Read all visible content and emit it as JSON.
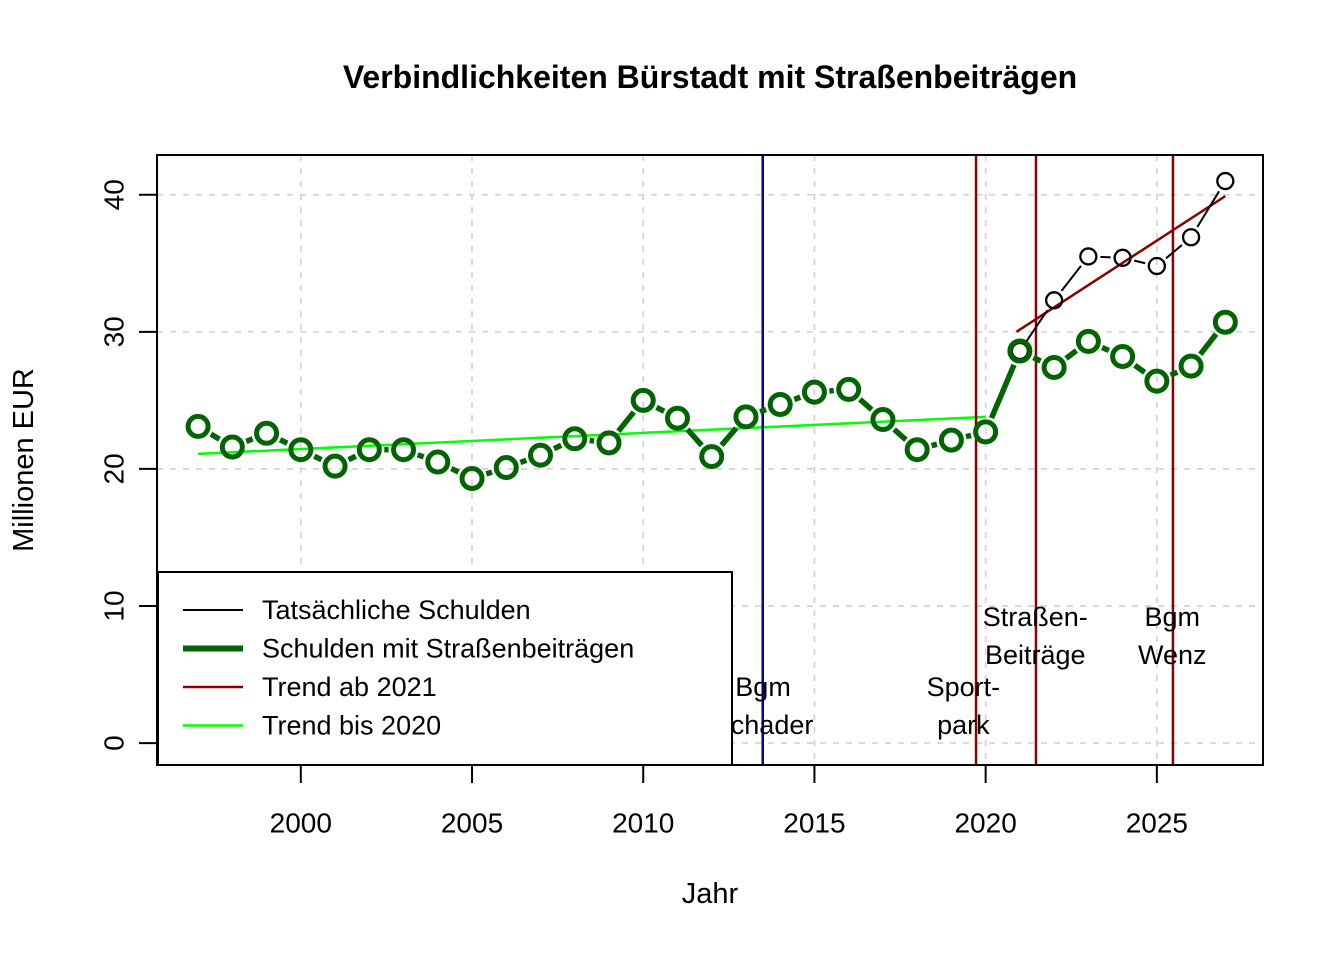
{
  "chart_data": {
    "type": "line",
    "title": "Verbindlichkeiten Bürstadt mit Straßenbeiträgen",
    "xlabel": "Jahr",
    "ylabel": "Millionen EUR",
    "xlim": [
      1995.8,
      2028.1
    ],
    "ylim": [
      -1.6,
      42.9
    ],
    "x_ticks": [
      "2000",
      "2005",
      "2010",
      "2015",
      "2020",
      "2025"
    ],
    "x_tick_values": [
      2000,
      2005,
      2010,
      2015,
      2020,
      2025
    ],
    "y_ticks": [
      "0",
      "10",
      "20",
      "30",
      "40"
    ],
    "y_tick_values": [
      0,
      10,
      20,
      30,
      40
    ],
    "grid": true,
    "grid_color": "#D3D3D3",
    "background": "#FFFFFF",
    "series": [
      {
        "name": "Tatsächliche Schulden",
        "color": "#000000",
        "line_width": 2,
        "marker": "open-circle",
        "x": [
          2021,
          2022,
          2023,
          2024,
          2025,
          2026,
          2027
        ],
        "values": [
          28.6,
          32.3,
          35.5,
          35.4,
          34.8,
          36.9,
          41.0
        ]
      },
      {
        "name": "Schulden mit Straßenbeiträgen",
        "color": "#006400",
        "line_width": 5.5,
        "marker": "open-circle",
        "x": [
          1997,
          1998,
          1999,
          2000,
          2001,
          2002,
          2003,
          2004,
          2005,
          2006,
          2007,
          2008,
          2009,
          2010,
          2011,
          2012,
          2013,
          2014,
          2015,
          2016,
          2017,
          2018,
          2019,
          2020,
          2021,
          2022,
          2023,
          2024,
          2025,
          2026,
          2027
        ],
        "values": [
          23.1,
          21.6,
          22.6,
          21.4,
          20.2,
          21.4,
          21.4,
          20.5,
          19.3,
          20.1,
          21.0,
          22.2,
          21.9,
          25.0,
          23.7,
          20.9,
          23.8,
          24.7,
          25.6,
          25.8,
          23.6,
          21.4,
          22.1,
          22.7,
          28.6,
          27.4,
          29.3,
          28.2,
          26.4,
          27.5,
          30.7
        ]
      }
    ],
    "trend_lines": [
      {
        "name": "Trend ab 2021",
        "color": "#8B0000",
        "line_width": 2.5,
        "from": [
          2020.9,
          30.0
        ],
        "to": [
          2027.0,
          39.9
        ]
      },
      {
        "name": "Trend bis 2020",
        "color": "#00FF00",
        "line_width": 2.5,
        "from": [
          1997.0,
          21.1
        ],
        "to": [
          2020.0,
          23.8
        ]
      }
    ],
    "event_lines": [
      {
        "name": "bgm-schader",
        "x": 2013.49,
        "color": "#0000A0",
        "label_lines": [
          "Bgm",
          "Schader"
        ],
        "label_x": 2013.5,
        "label_row": "low"
      },
      {
        "name": "sportpark",
        "x": 2019.72,
        "color": "#8B0000",
        "label_lines": [
          "Sport-",
          "park"
        ],
        "label_x": 2019.35,
        "label_row": "low"
      },
      {
        "name": "strassenbeitraege",
        "x": 2021.47,
        "color": "#8B0000",
        "label_lines": [
          "Straßen-",
          "Beiträge"
        ],
        "label_x": 2021.45,
        "label_row": "high"
      },
      {
        "name": "bgm-wenz",
        "x": 2025.47,
        "color": "#8B0000",
        "label_lines": [
          "Bgm",
          "Wenz"
        ],
        "label_x": 2025.45,
        "label_row": "high"
      }
    ],
    "legend": {
      "position": "bottom-left",
      "entries": [
        {
          "label": "Tatsächliche Schulden",
          "color": "#000000",
          "line_width": 2
        },
        {
          "label": "Schulden mit Straßenbeiträgen",
          "color": "#006400",
          "line_width": 6
        },
        {
          "label": "Trend ab 2021",
          "color": "#8B0000",
          "line_width": 2.5
        },
        {
          "label": "Trend bis 2020",
          "color": "#00FF00",
          "line_width": 2.5
        }
      ]
    }
  }
}
